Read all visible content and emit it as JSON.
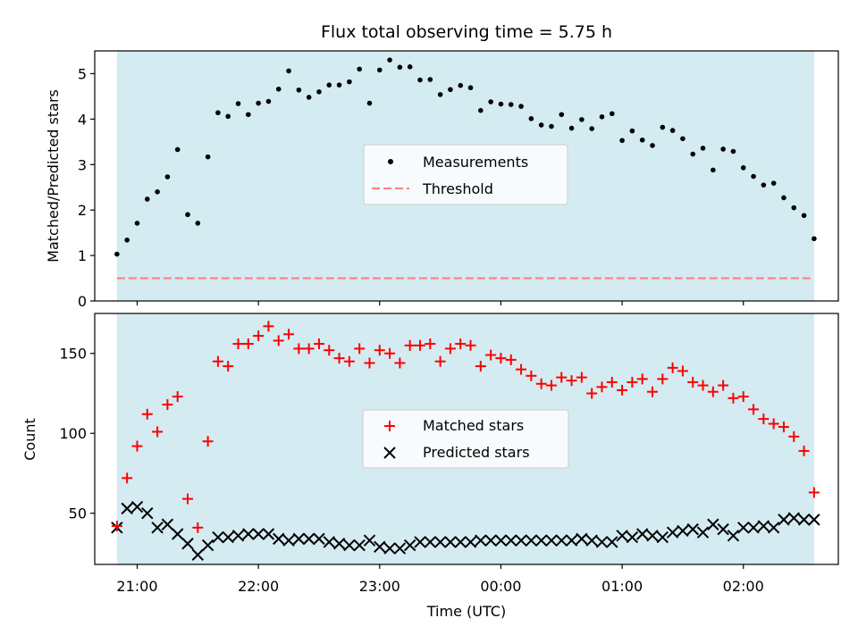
{
  "chart_data": [
    {
      "type": "scatter",
      "title": "Flux total observing time = 5.75 h",
      "xlabel": "",
      "ylabel": "Matched/Predicted stars",
      "ylim": [
        0,
        5.5
      ],
      "yticks": [
        0,
        1,
        2,
        3,
        4,
        5
      ],
      "xlim": [
        "20:39",
        "02:47"
      ],
      "xticks": [
        "21:00",
        "22:00",
        "23:00",
        "00:00",
        "01:00",
        "02:00"
      ],
      "observing_window": [
        "20:50",
        "02:35"
      ],
      "legend_position": "center",
      "series": [
        {
          "name": "Measurements",
          "marker": "dot",
          "color": "#000000",
          "x": [
            "20:50",
            "20:55",
            "21:00",
            "21:05",
            "21:10",
            "21:15",
            "21:20",
            "21:25",
            "21:30",
            "21:35",
            "21:40",
            "21:45",
            "21:50",
            "21:55",
            "22:00",
            "22:05",
            "22:10",
            "22:15",
            "22:20",
            "22:25",
            "22:30",
            "22:35",
            "22:40",
            "22:45",
            "22:50",
            "22:55",
            "23:00",
            "23:05",
            "23:10",
            "23:15",
            "23:20",
            "23:25",
            "23:30",
            "23:35",
            "23:40",
            "23:45",
            "23:50",
            "23:55",
            "00:00",
            "00:05",
            "00:10",
            "00:15",
            "00:20",
            "00:25",
            "00:30",
            "00:35",
            "00:40",
            "00:45",
            "00:50",
            "00:55",
            "01:00",
            "01:05",
            "01:10",
            "01:15",
            "01:20",
            "01:25",
            "01:30",
            "01:35",
            "01:40",
            "01:45",
            "01:50",
            "01:55",
            "02:00",
            "02:05",
            "02:10",
            "02:15",
            "02:20",
            "02:25",
            "02:30",
            "02:35"
          ],
          "values": [
            1.03,
            1.34,
            1.71,
            2.24,
            2.4,
            2.73,
            3.33,
            1.9,
            1.71,
            3.17,
            4.14,
            4.06,
            4.34,
            4.1,
            4.35,
            4.39,
            4.66,
            5.06,
            4.64,
            4.48,
            4.6,
            4.75,
            4.75,
            4.82,
            5.1,
            4.35,
            5.08,
            5.3,
            5.14,
            5.15,
            4.86,
            4.87,
            4.54,
            4.65,
            4.74,
            4.69,
            4.19,
            4.38,
            4.33,
            4.32,
            4.28,
            4.01,
            3.87,
            3.84,
            4.1,
            3.8,
            3.99,
            3.79,
            4.05,
            4.12,
            3.53,
            3.74,
            3.54,
            3.42,
            3.82,
            3.75,
            3.57,
            3.23,
            3.36,
            2.88,
            3.34,
            3.29,
            2.93,
            2.74,
            2.55,
            2.59,
            2.27,
            2.05,
            1.88,
            1.37
          ]
        },
        {
          "name": "Threshold",
          "marker": "dashed-line",
          "color": "#ff7f7f",
          "value": 0.5
        }
      ]
    },
    {
      "type": "scatter",
      "title": "",
      "xlabel": "Time (UTC)",
      "ylabel": "Count",
      "ylim": [
        18,
        175
      ],
      "yticks": [
        50,
        100,
        150
      ],
      "xlim": [
        "20:39",
        "02:47"
      ],
      "xticks": [
        "21:00",
        "22:00",
        "23:00",
        "00:00",
        "01:00",
        "02:00"
      ],
      "observing_window": [
        "20:50",
        "02:35"
      ],
      "legend_position": "center",
      "series": [
        {
          "name": "Matched stars",
          "marker": "plus",
          "color": "#ff0000",
          "x": [
            "20:50",
            "20:55",
            "21:00",
            "21:05",
            "21:10",
            "21:15",
            "21:20",
            "21:25",
            "21:30",
            "21:35",
            "21:40",
            "21:45",
            "21:50",
            "21:55",
            "22:00",
            "22:05",
            "22:10",
            "22:15",
            "22:20",
            "22:25",
            "22:30",
            "22:35",
            "22:40",
            "22:45",
            "22:50",
            "22:55",
            "23:00",
            "23:05",
            "23:10",
            "23:15",
            "23:20",
            "23:25",
            "23:30",
            "23:35",
            "23:40",
            "23:45",
            "23:50",
            "23:55",
            "00:00",
            "00:05",
            "00:10",
            "00:15",
            "00:20",
            "00:25",
            "00:30",
            "00:35",
            "00:40",
            "00:45",
            "00:50",
            "00:55",
            "01:00",
            "01:05",
            "01:10",
            "01:15",
            "01:20",
            "01:25",
            "01:30",
            "01:35",
            "01:40",
            "01:45",
            "01:50",
            "01:55",
            "02:00",
            "02:05",
            "02:10",
            "02:15",
            "02:20",
            "02:25",
            "02:30",
            "02:35"
          ],
          "values": [
            42,
            72,
            92,
            112,
            101,
            118,
            123,
            59,
            41,
            95,
            145,
            142,
            156,
            156,
            161,
            167,
            158,
            162,
            153,
            153,
            156,
            152,
            147,
            145,
            153,
            144,
            152,
            150,
            144,
            155,
            155,
            156,
            145,
            153,
            156,
            155,
            142,
            149,
            147,
            146,
            140,
            136,
            131,
            130,
            135,
            133,
            135,
            125,
            129,
            132,
            127,
            132,
            134,
            126,
            134,
            141,
            139,
            132,
            130,
            126,
            130,
            122,
            123,
            115,
            109,
            106,
            104,
            98,
            89,
            63
          ]
        },
        {
          "name": "Predicted stars",
          "marker": "x",
          "color": "#000000",
          "x": [
            "20:50",
            "20:55",
            "21:00",
            "21:05",
            "21:10",
            "21:15",
            "21:20",
            "21:25",
            "21:30",
            "21:35",
            "21:40",
            "21:45",
            "21:50",
            "21:55",
            "22:00",
            "22:05",
            "22:10",
            "22:15",
            "22:20",
            "22:25",
            "22:30",
            "22:35",
            "22:40",
            "22:45",
            "22:50",
            "22:55",
            "23:00",
            "23:05",
            "23:10",
            "23:15",
            "23:20",
            "23:25",
            "23:30",
            "23:35",
            "23:40",
            "23:45",
            "23:50",
            "23:55",
            "00:00",
            "00:05",
            "00:10",
            "00:15",
            "00:20",
            "00:25",
            "00:30",
            "00:35",
            "00:40",
            "00:45",
            "00:50",
            "00:55",
            "01:00",
            "01:05",
            "01:10",
            "01:15",
            "01:20",
            "01:25",
            "01:30",
            "01:35",
            "01:40",
            "01:45",
            "01:50",
            "01:55",
            "02:00",
            "02:05",
            "02:10",
            "02:15",
            "02:20",
            "02:25",
            "02:30",
            "02:35"
          ],
          "values": [
            41,
            53,
            54,
            50,
            41,
            43,
            37,
            31,
            24,
            30,
            35,
            35,
            36,
            37,
            37,
            37,
            34,
            33,
            34,
            34,
            34,
            32,
            31,
            30,
            30,
            33,
            29,
            28,
            28,
            30,
            32,
            32,
            32,
            32,
            32,
            32,
            33,
            33,
            33,
            33,
            33,
            33,
            33,
            33,
            33,
            33,
            34,
            33,
            32,
            32,
            36,
            35,
            37,
            36,
            35,
            38,
            39,
            40,
            38,
            43,
            40,
            36,
            41,
            41,
            42,
            41,
            46,
            47,
            46,
            46
          ]
        }
      ]
    }
  ]
}
